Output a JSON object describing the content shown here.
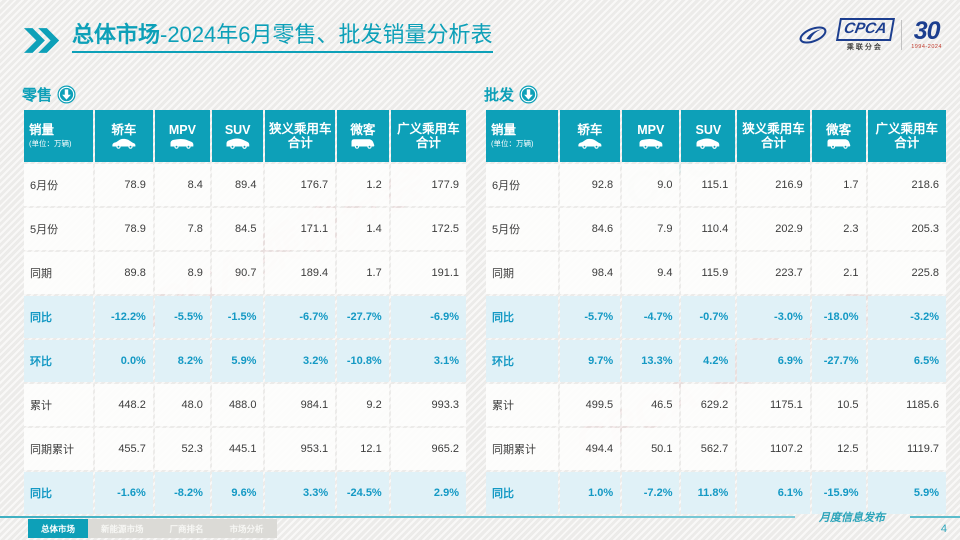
{
  "slide": {
    "title": {
      "highlight": "总体市场",
      "rest": "-2024年6月零售、批发销量分析表"
    },
    "logo": {
      "org_abbr": "CPCA",
      "org_name": "乘联分会",
      "anniversary": "30",
      "years": "1994-2024"
    },
    "watermark": "CPCA 乘联分会",
    "footer": {
      "tabs": [
        {
          "label": "总体市场",
          "active": true
        },
        {
          "label": "新能源市场",
          "active": false
        },
        {
          "label": "厂商排名",
          "active": false
        },
        {
          "label": "市场分析",
          "active": false
        }
      ],
      "publication": "月度信息发布",
      "page_number": "4"
    },
    "colors": {
      "accent": "#0da0b8",
      "percent_text": "#1499c4",
      "percent_row_bg": "#e0f1f7",
      "logo_blue": "#1c3e8f"
    }
  },
  "tables": [
    {
      "id": "retail",
      "section_label": "零售",
      "first_col": {
        "title": "销量",
        "unit": "(单位：万辆)"
      },
      "columns": [
        {
          "label": "轿车",
          "icon": "sedan-car-icon"
        },
        {
          "label": "MPV",
          "icon": "mpv-car-icon"
        },
        {
          "label": "SUV",
          "icon": "suv-car-icon"
        },
        {
          "label": "狭义乘用车",
          "line2": "合计"
        },
        {
          "label": "微客",
          "icon": "van-icon"
        },
        {
          "label": "广义乘用车",
          "line2": "合计"
        }
      ],
      "rows": [
        {
          "label": "6月份",
          "type": "value",
          "values": [
            "78.9",
            "8.4",
            "89.4",
            "176.7",
            "1.2",
            "177.9"
          ]
        },
        {
          "label": "5月份",
          "type": "value",
          "values": [
            "78.9",
            "7.8",
            "84.5",
            "171.1",
            "1.4",
            "172.5"
          ]
        },
        {
          "label": "同期",
          "type": "value",
          "values": [
            "89.8",
            "8.9",
            "90.7",
            "189.4",
            "1.7",
            "191.1"
          ]
        },
        {
          "label": "同比",
          "type": "percent",
          "values": [
            "-12.2%",
            "-5.5%",
            "-1.5%",
            "-6.7%",
            "-27.7%",
            "-6.9%"
          ]
        },
        {
          "label": "环比",
          "type": "percent",
          "values": [
            "0.0%",
            "8.2%",
            "5.9%",
            "3.2%",
            "-10.8%",
            "3.1%"
          ]
        },
        {
          "label": "累计",
          "type": "value",
          "values": [
            "448.2",
            "48.0",
            "488.0",
            "984.1",
            "9.2",
            "993.3"
          ]
        },
        {
          "label": "同期累计",
          "type": "value",
          "values": [
            "455.7",
            "52.3",
            "445.1",
            "953.1",
            "12.1",
            "965.2"
          ]
        },
        {
          "label": "同比",
          "type": "percent",
          "values": [
            "-1.6%",
            "-8.2%",
            "9.6%",
            "3.3%",
            "-24.5%",
            "2.9%"
          ]
        }
      ]
    },
    {
      "id": "wholesale",
      "section_label": "批发",
      "first_col": {
        "title": "销量",
        "unit": "(单位：万辆)"
      },
      "columns": [
        {
          "label": "轿车",
          "icon": "sedan-car-icon"
        },
        {
          "label": "MPV",
          "icon": "mpv-car-icon"
        },
        {
          "label": "SUV",
          "icon": "suv-car-icon"
        },
        {
          "label": "狭义乘用车",
          "line2": "合计"
        },
        {
          "label": "微客",
          "icon": "van-icon"
        },
        {
          "label": "广义乘用车",
          "line2": "合计"
        }
      ],
      "rows": [
        {
          "label": "6月份",
          "type": "value",
          "values": [
            "92.8",
            "9.0",
            "115.1",
            "216.9",
            "1.7",
            "218.6"
          ]
        },
        {
          "label": "5月份",
          "type": "value",
          "values": [
            "84.6",
            "7.9",
            "110.4",
            "202.9",
            "2.3",
            "205.3"
          ]
        },
        {
          "label": "同期",
          "type": "value",
          "values": [
            "98.4",
            "9.4",
            "115.9",
            "223.7",
            "2.1",
            "225.8"
          ]
        },
        {
          "label": "同比",
          "type": "percent",
          "values": [
            "-5.7%",
            "-4.7%",
            "-0.7%",
            "-3.0%",
            "-18.0%",
            "-3.2%"
          ]
        },
        {
          "label": "环比",
          "type": "percent",
          "values": [
            "9.7%",
            "13.3%",
            "4.2%",
            "6.9%",
            "-27.7%",
            "6.5%"
          ]
        },
        {
          "label": "累计",
          "type": "value",
          "values": [
            "499.5",
            "46.5",
            "629.2",
            "1175.1",
            "10.5",
            "1185.6"
          ]
        },
        {
          "label": "同期累计",
          "type": "value",
          "values": [
            "494.4",
            "50.1",
            "562.7",
            "1107.2",
            "12.5",
            "1119.7"
          ]
        },
        {
          "label": "同比",
          "type": "percent",
          "values": [
            "1.0%",
            "-7.2%",
            "11.8%",
            "6.1%",
            "-15.9%",
            "5.9%"
          ]
        }
      ]
    }
  ]
}
